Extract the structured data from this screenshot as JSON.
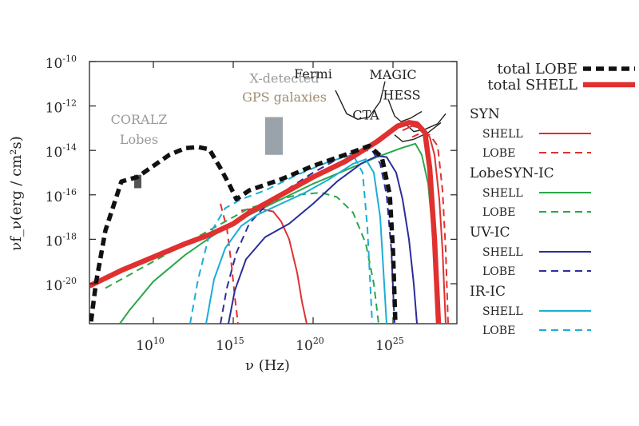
{
  "chart_data": {
    "type": "line",
    "xlabel": "ν (Hz)",
    "ylabel": "νf_ν(erg / cm²s)",
    "xscale": "log",
    "yscale": "log",
    "xlim_log": [
      6,
      29
    ],
    "ylim_log": [
      -21.8,
      -10
    ],
    "x_ticks": [
      {
        "base": "10",
        "exp": "10",
        "v": 10
      },
      {
        "base": "10",
        "exp": "15",
        "v": 15
      },
      {
        "base": "10",
        "exp": "20",
        "v": 20
      },
      {
        "base": "10",
        "exp": "25",
        "v": 25
      }
    ],
    "y_ticks": [
      {
        "base": "10",
        "exp": "-10",
        "v": -10
      },
      {
        "base": "10",
        "exp": "-12",
        "v": -12
      },
      {
        "base": "10",
        "exp": "-14",
        "v": -14
      },
      {
        "base": "10",
        "exp": "-16",
        "v": -16
      },
      {
        "base": "10",
        "exp": "-18",
        "v": -18
      },
      {
        "base": "10",
        "exp": "-20",
        "v": -20
      }
    ],
    "colors": {
      "syn": "#e03030",
      "lobesyn": "#2aa84a",
      "uv": "#2a2e9a",
      "ir": "#1aaed6",
      "total_lobe": "#111111",
      "total_shell": "#e03030",
      "gray": "#999999"
    },
    "series": [
      {
        "name": "total LOBE",
        "key": "total_lobe",
        "style": "dashed-thick",
        "x": [
          6.1,
          6.4,
          7,
          8,
          9,
          10,
          11,
          12,
          12.8,
          13.5,
          14.2,
          14.8,
          15.2,
          16,
          18,
          20,
          22,
          23.5,
          24.3,
          24.8,
          25,
          25.15
        ],
        "y": [
          -21.7,
          -20,
          -17.6,
          -15.4,
          -15.2,
          -14.7,
          -14.2,
          -13.9,
          -13.85,
          -13.95,
          -14.8,
          -15.6,
          -16.2,
          -15.8,
          -15.3,
          -14.7,
          -14.2,
          -13.8,
          -14.3,
          -16,
          -18.5,
          -21.8
        ]
      },
      {
        "name": "total SHELL",
        "key": "total_shell",
        "style": "solid-thick",
        "x": [
          6,
          8,
          10,
          12,
          13.5,
          15,
          16,
          17.5,
          18.5,
          20,
          22,
          24,
          25.3,
          26,
          26.5,
          27,
          27.3,
          27.6,
          27.85
        ],
        "y": [
          -20.1,
          -19.4,
          -18.8,
          -18.2,
          -17.8,
          -17.3,
          -16.8,
          -16.2,
          -15.8,
          -15.2,
          -14.5,
          -13.6,
          -12.9,
          -12.75,
          -12.8,
          -13.2,
          -14.8,
          -18,
          -21.8
        ]
      },
      {
        "name": "SYN SHELL",
        "key": "syn",
        "style": "solid",
        "x": [
          15.5,
          16.5,
          17.5,
          18,
          18.5,
          19,
          19.3,
          19.6
        ],
        "y": [
          -16.7,
          -16.6,
          -16.75,
          -17.2,
          -18,
          -19.5,
          -20.8,
          -21.8
        ]
      },
      {
        "name": "SYN LOBE",
        "key": "syn",
        "style": "dashed",
        "x": [
          14.2,
          14.6,
          14.9,
          15.1,
          15.3
        ],
        "y": [
          -16.4,
          -17.5,
          -19.2,
          -20.6,
          -21.8
        ]
      },
      {
        "name": "SYN SHELL (high)",
        "key": "syn",
        "style": "solid",
        "x": [
          25.6,
          26.2,
          26.8,
          27.3,
          27.6,
          27.9,
          28.1,
          28.3
        ],
        "y": [
          -13.1,
          -12.9,
          -13,
          -13.4,
          -14.2,
          -16.2,
          -18.5,
          -21.8
        ]
      },
      {
        "name": "SYN LOBE (high)",
        "key": "syn",
        "style": "dashed",
        "x": [
          26.2,
          26.8,
          27.3,
          27.8,
          28.1,
          28.3,
          28.45
        ],
        "y": [
          -13.4,
          -13.2,
          -13.3,
          -13.8,
          -15.8,
          -18.5,
          -21.8
        ]
      },
      {
        "name": "LobeSYN-IC SHELL",
        "key": "lobesyn",
        "style": "solid",
        "x": [
          7.9,
          8.5,
          10,
          12,
          14,
          16,
          18,
          20,
          22,
          24,
          25.5,
          26.4,
          26.8,
          27.2,
          27.5,
          27.8
        ],
        "y": [
          -21.8,
          -21.2,
          -19.9,
          -18.7,
          -17.7,
          -16.9,
          -16.2,
          -15.5,
          -14.9,
          -14.3,
          -13.9,
          -13.7,
          -14.2,
          -15.5,
          -17.8,
          -21.8
        ]
      },
      {
        "name": "LobeSYN-IC LOBE",
        "key": "lobesyn",
        "style": "dashed",
        "x": [
          7,
          8,
          10,
          12,
          14,
          16,
          17.5,
          19,
          20.5,
          21.5,
          22.5,
          23.3,
          23.8,
          24.1
        ],
        "y": [
          -20.2,
          -19.8,
          -19,
          -18.2,
          -17.4,
          -16.6,
          -16.3,
          -16,
          -15.9,
          -16.1,
          -16.8,
          -18.2,
          -20,
          -21.8
        ]
      },
      {
        "name": "UV-IC SHELL",
        "key": "uv",
        "style": "solid",
        "x": [
          14.7,
          15.1,
          15.8,
          17,
          18.5,
          20,
          21.5,
          23,
          24,
          24.6,
          25.2,
          25.6,
          26,
          26.3,
          26.5
        ],
        "y": [
          -21.8,
          -20.3,
          -18.9,
          -17.9,
          -17.3,
          -16.4,
          -15.4,
          -14.6,
          -14.25,
          -14.3,
          -15,
          -16.2,
          -18,
          -20,
          -21.8
        ]
      },
      {
        "name": "UV-IC LOBE",
        "key": "uv",
        "style": "dashed",
        "x": [
          14.2,
          14.6,
          15.2,
          16,
          17,
          18.5,
          20,
          21.5,
          22.8,
          23.7,
          24.2,
          24.6,
          24.9,
          25.1
        ],
        "y": [
          -21.8,
          -20.2,
          -18.6,
          -17.3,
          -16.5,
          -15.7,
          -15,
          -14.4,
          -14,
          -14,
          -14.6,
          -16,
          -18.5,
          -21.8
        ]
      },
      {
        "name": "IR-IC SHELL",
        "key": "ir",
        "style": "solid",
        "x": [
          13.3,
          13.8,
          14.5,
          15.5,
          16.5,
          18,
          19.5,
          21,
          22.5,
          23.3,
          23.8,
          24.2,
          24.6
        ],
        "y": [
          -21.8,
          -19.8,
          -18.4,
          -17.4,
          -16.9,
          -16.4,
          -15.9,
          -15.3,
          -14.6,
          -14.4,
          -15,
          -17,
          -21.8
        ]
      },
      {
        "name": "IR-IC LOBE",
        "key": "ir",
        "style": "dashed",
        "x": [
          12.3,
          12.8,
          13.5,
          14.5,
          15.5,
          17,
          19,
          21,
          22.5,
          23.1,
          23.4,
          23.7
        ],
        "y": [
          -21.8,
          -19.8,
          -17.8,
          -16.6,
          -16.2,
          -15.8,
          -15.1,
          -14.5,
          -14.2,
          -15,
          -17.5,
          -21.8
        ]
      }
    ],
    "sensitivity_curves": [
      {
        "name": "Fermi",
        "x": [
          21.4,
          22.1,
          22.8,
          23.5,
          24.2,
          24.5
        ],
        "y": [
          -11.3,
          -12.35,
          -12.6,
          -12.5,
          -11.8,
          -10.9
        ]
      },
      {
        "name": "CTA",
        "x": [
          25.1,
          25.6,
          26.3,
          27.2,
          28
        ],
        "y": [
          -13.3,
          -13.6,
          -13.5,
          -13.2,
          -12.75
        ]
      },
      {
        "name": "MAGIC",
        "x": [
          24.7,
          25.1,
          25.5,
          26.1,
          26.8
        ],
        "y": [
          -11.7,
          -12.45,
          -12.7,
          -12.55,
          -12.25
        ]
      },
      {
        "name": "HESS",
        "x": [
          25.7,
          26.3,
          27,
          27.8,
          28.3
        ],
        "y": [
          -12.75,
          -13.15,
          -13.05,
          -12.8,
          -12.35
        ]
      }
    ],
    "boxes": [
      {
        "name": "X-detected GPS galaxies",
        "x0": 17.0,
        "x1": 18.1,
        "y0": -14.2,
        "y1": -12.5,
        "color": "#9aa2aa"
      },
      {
        "name": "CORALZ Lobes",
        "x0": 8.8,
        "x1": 9.25,
        "y0": -15.7,
        "y1": -15.1,
        "color": "#555555"
      }
    ],
    "annotations": [
      {
        "text": "X-detected",
        "color": "#9a9a9a",
        "x": 18.2,
        "y": -10.95
      },
      {
        "text": "GPS galaxies",
        "color": "#a08a70",
        "x": 18.2,
        "y": -11.8
      },
      {
        "text": "CORALZ",
        "color": "#999999",
        "x": 9.1,
        "y": -12.8
      },
      {
        "text": "Lobes",
        "color": "#999999",
        "x": 9.1,
        "y": -13.7
      },
      {
        "text": "Fermi",
        "color": "#222222",
        "x": 20.0,
        "y": -10.75
      },
      {
        "text": "CTA",
        "color": "#222222",
        "x": 23.3,
        "y": -12.6
      },
      {
        "text": "MAGIC",
        "color": "#222222",
        "x": 25.0,
        "y": -10.8
      },
      {
        "text": "HESS",
        "color": "#222222",
        "x": 25.55,
        "y": -11.7
      }
    ],
    "legend": {
      "totals": [
        {
          "label": "total LOBE",
          "key": "total_lobe",
          "style": "dashed-thick"
        },
        {
          "label": "total SHELL",
          "key": "total_shell",
          "style": "solid-thick"
        }
      ],
      "groups": [
        {
          "title": "SYN",
          "key": "syn",
          "items": [
            {
              "label": "SHELL",
              "style": "solid"
            },
            {
              "label": "LOBE",
              "style": "dashed"
            }
          ]
        },
        {
          "title": "LobeSYN-IC",
          "key": "lobesyn",
          "items": [
            {
              "label": "SHELL",
              "style": "solid"
            },
            {
              "label": "LOBE",
              "style": "dashed"
            }
          ]
        },
        {
          "title": "UV-IC",
          "key": "uv",
          "items": [
            {
              "label": "SHELL",
              "style": "solid"
            },
            {
              "label": "LOBE",
              "style": "dashed"
            }
          ]
        },
        {
          "title": "IR-IC",
          "key": "ir",
          "items": [
            {
              "label": "SHELL",
              "style": "solid"
            },
            {
              "label": "LOBE",
              "style": "dashed"
            }
          ]
        }
      ]
    }
  }
}
